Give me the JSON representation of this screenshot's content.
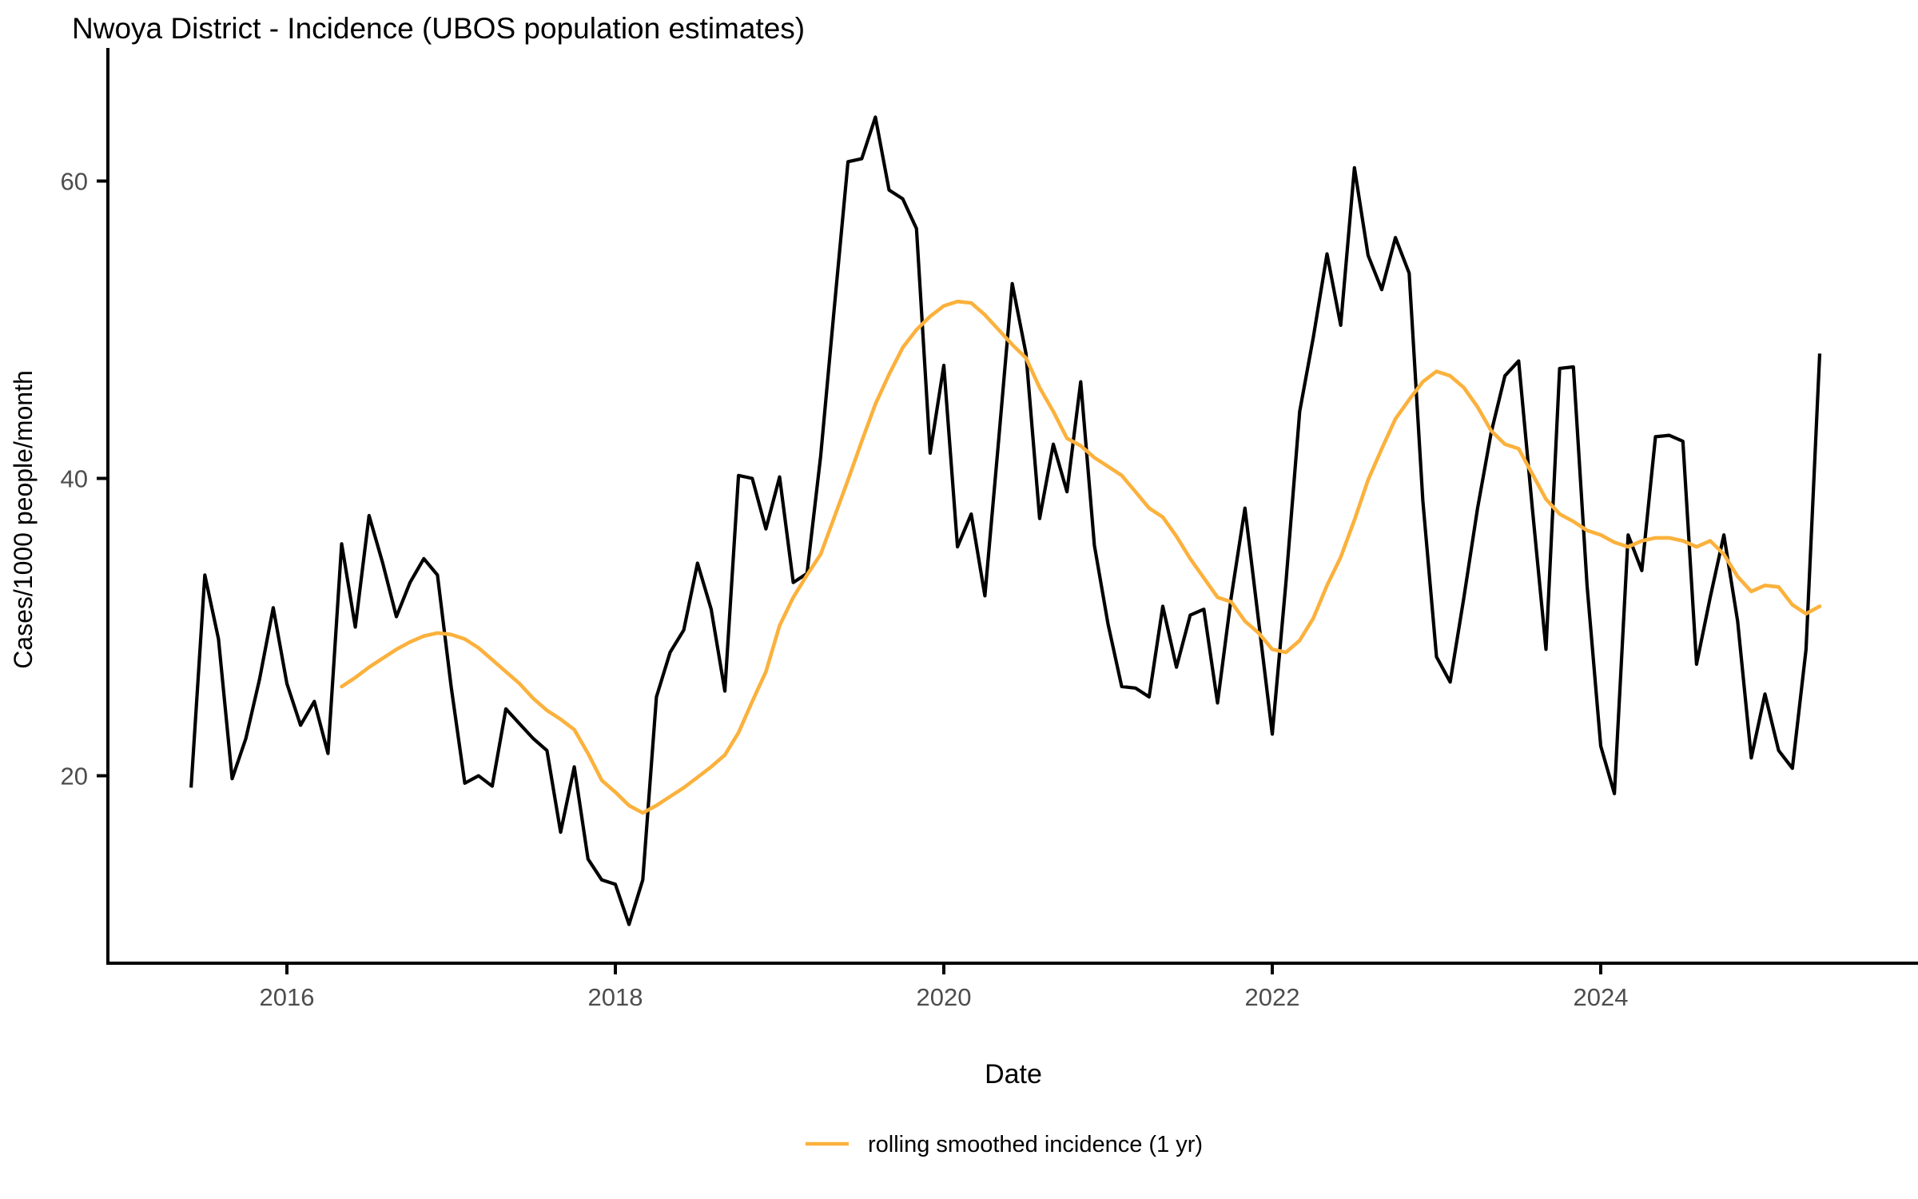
{
  "title": "Nwoya District - Incidence (UBOS population estimates)",
  "axes": {
    "y_label": "Cases/1000 people/month",
    "x_label": "Date",
    "y_ticks": [
      20,
      40,
      60
    ],
    "x_ticks": [
      2016,
      2018,
      2020,
      2022,
      2024
    ]
  },
  "legend": {
    "label": "rolling smoothed incidence (1 yr)"
  },
  "colors": {
    "incidence_line": "#000000",
    "smoothed_line": "#FBB13C",
    "axis": "#000000",
    "tick_text": "#4d4d4d",
    "background": "#ffffff"
  },
  "chart_data": {
    "type": "line",
    "title": "Nwoya District - Incidence (UBOS population estimates)",
    "xlabel": "Date",
    "ylabel": "Cases/1000 people/month",
    "x_unit": "monthly points, x tick labels are years",
    "xlim": [
      2015.2,
      2025.75
    ],
    "ylim": [
      7.5,
      68
    ],
    "grid": false,
    "legend_position": "bottom-center",
    "series": [
      {
        "name": "monthly incidence",
        "color": "#000000",
        "start": "2015-06",
        "values": [
          19.2,
          33.5,
          29.2,
          19.8,
          22.5,
          26.5,
          31.3,
          26.2,
          23.4,
          25.0,
          21.5,
          35.6,
          30.0,
          37.5,
          34.3,
          30.7,
          33.0,
          34.6,
          33.5,
          26.0,
          19.5,
          20.0,
          19.3,
          24.5,
          23.5,
          22.5,
          21.7,
          16.2,
          20.6,
          14.4,
          13.0,
          12.7,
          10.0,
          13.0,
          25.3,
          28.3,
          29.8,
          34.3,
          31.2,
          25.7,
          40.2,
          40.0,
          36.6,
          40.1,
          33.0,
          33.6,
          41.5,
          51.5,
          61.3,
          61.5,
          64.3,
          59.4,
          58.8,
          56.8,
          41.7,
          47.6,
          35.4,
          37.6,
          32.1,
          42.5,
          53.1,
          48.4,
          37.3,
          42.3,
          39.1,
          46.5,
          35.5,
          30.2,
          26.0,
          25.9,
          25.3,
          31.4,
          27.3,
          30.8,
          31.2,
          24.9,
          32.0,
          38.0,
          30.4,
          22.8,
          33.0,
          44.5,
          49.5,
          55.1,
          50.3,
          60.9,
          55.0,
          52.7,
          56.2,
          53.8,
          38.5,
          28.0,
          26.3,
          32.0,
          38.0,
          43.1,
          46.9,
          47.9,
          38.0,
          28.5,
          47.4,
          47.5,
          32.8,
          22.0,
          18.8,
          36.2,
          33.8,
          42.8,
          42.9,
          42.5,
          27.5,
          32.0,
          36.2,
          30.4,
          21.2,
          25.5,
          21.7,
          20.5,
          28.5,
          48.4
        ]
      },
      {
        "name": "rolling smoothed incidence (1 yr)",
        "color": "#FBB13C",
        "start": "2016-05",
        "values": [
          26.0,
          26.6,
          27.3,
          27.9,
          28.5,
          29.0,
          29.4,
          29.6,
          29.5,
          29.2,
          28.6,
          27.8,
          27.0,
          26.2,
          25.2,
          24.4,
          23.8,
          23.1,
          21.5,
          19.7,
          18.9,
          18.0,
          17.5,
          18.0,
          18.6,
          19.2,
          19.9,
          20.6,
          21.4,
          22.9,
          25.0,
          27.0,
          30.1,
          32.0,
          33.5,
          34.9,
          37.4,
          39.9,
          42.5,
          45.0,
          47.0,
          48.8,
          50.0,
          50.9,
          51.6,
          51.9,
          51.8,
          51.0,
          50.0,
          49.0,
          48.1,
          46.1,
          44.5,
          42.7,
          42.2,
          41.4,
          40.8,
          40.2,
          39.1,
          38.0,
          37.4,
          36.1,
          34.6,
          33.3,
          32.0,
          31.7,
          30.4,
          29.6,
          28.5,
          28.3,
          29.1,
          30.6,
          32.8,
          34.7,
          37.2,
          39.9,
          42.0,
          44.0,
          45.3,
          46.5,
          47.2,
          46.9,
          46.1,
          44.8,
          43.2,
          42.3,
          42.0,
          40.3,
          38.6,
          37.6,
          37.1,
          36.5,
          36.2,
          35.7,
          35.4,
          35.8,
          36.0,
          36.0,
          35.8,
          35.4,
          35.8,
          34.9,
          33.4,
          32.4,
          32.8,
          32.7,
          31.5,
          30.9,
          31.4
        ]
      }
    ]
  }
}
